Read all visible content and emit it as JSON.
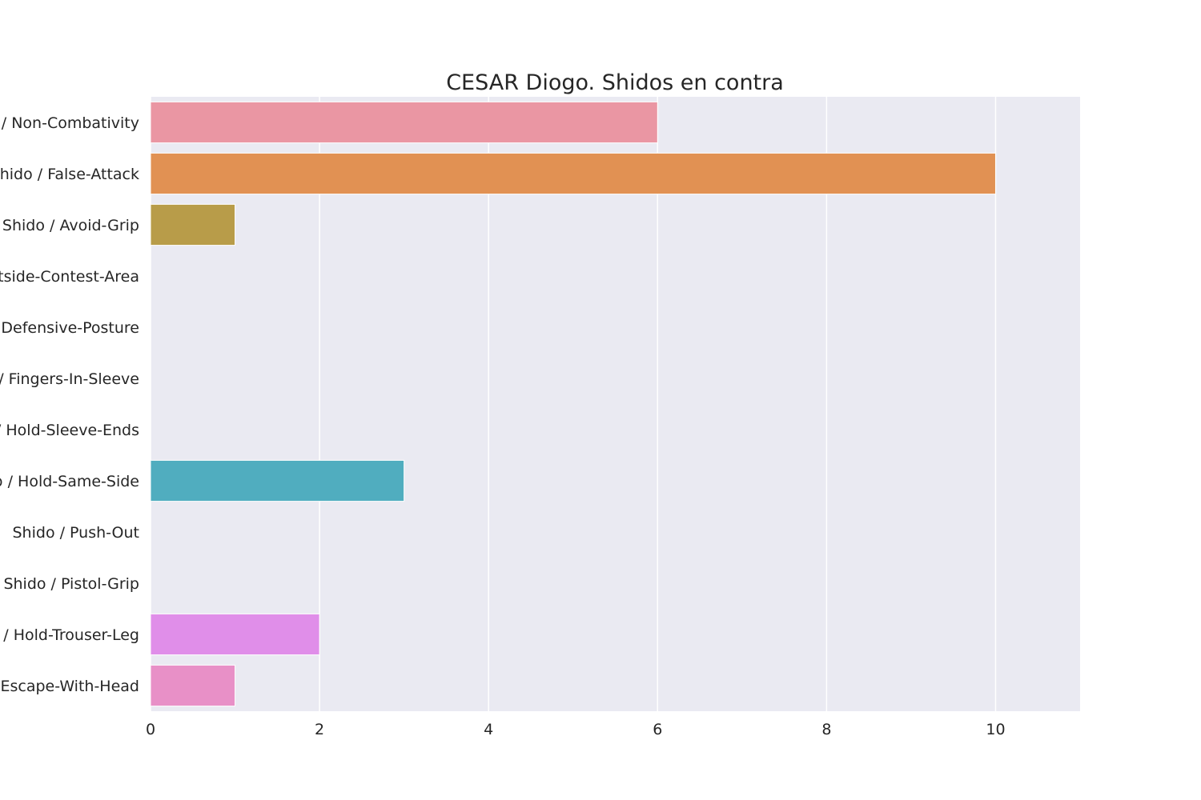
{
  "chart_data": {
    "type": "bar",
    "orientation": "horizontal",
    "title": "CESAR Diogo. Shidos en contra",
    "xlabel": "",
    "ylabel": "",
    "xlim": [
      0,
      11
    ],
    "x_ticks": [
      0,
      2,
      4,
      6,
      8,
      10
    ],
    "grid": true,
    "categories": [
      "Shido / Non-Combativity",
      "Shido / False-Attack",
      "Shido / Avoid-Grip",
      "Shido / Outside-Contest-Area",
      "Shido / Defensive-Posture",
      "Shido / Fingers-In-Sleeve",
      "Shido / Hold-Sleeve-Ends",
      "Shido / Hold-Same-Side",
      "Shido / Push-Out",
      "Shido / Pistol-Grip",
      "Shido / Hold-Trouser-Leg",
      "Shido / Escape-With-Head"
    ],
    "values": [
      6,
      10,
      1,
      0,
      0,
      0,
      0,
      3,
      0,
      0,
      2,
      1
    ],
    "colors": [
      "#ea96a3",
      "#e19153",
      "#b89c49",
      "#98a441",
      "#6bb141",
      "#4dae84",
      "#4db3a0",
      "#50adbf",
      "#62a8e8",
      "#a8a0ee",
      "#e08ee9",
      "#e890c7"
    ],
    "background_color": "#eaeaf2",
    "grid_color": "#ffffff"
  }
}
